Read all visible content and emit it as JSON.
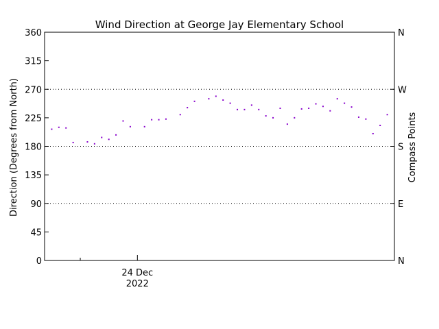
{
  "chart_data": {
    "type": "scatter",
    "title": "Wind Direction at George Jay Elementary School",
    "ylabel": "Direction (Degrees from North)",
    "ylabel_right": "Compass Points",
    "ylim": [
      0,
      360
    ],
    "yticks": [
      0,
      45,
      90,
      135,
      180,
      225,
      270,
      315,
      360
    ],
    "right_ticks": [
      {
        "value": 0,
        "label": "N"
      },
      {
        "value": 90,
        "label": "E"
      },
      {
        "value": 180,
        "label": "S"
      },
      {
        "value": 270,
        "label": "W"
      },
      {
        "value": 360,
        "label": "N"
      }
    ],
    "gridlines": [
      90,
      180,
      270
    ],
    "grid_style": "dotted",
    "xlim": [
      "2022-12-23 17:30",
      "2022-12-24 18:00"
    ],
    "x_tick_minor": [
      "2022-12-23 20:00"
    ],
    "x_tick_major": {
      "value": "2022-12-24 00:00",
      "label_line1": "24 Dec",
      "label_line2": "2022"
    },
    "marker_color": "#8800cc",
    "series": [
      {
        "x": [
          "2022-12-23 18:00",
          "2022-12-23 18:30",
          "2022-12-23 19:00",
          "2022-12-23 19:30",
          "2022-12-23 20:30",
          "2022-12-23 21:00",
          "2022-12-23 21:30",
          "2022-12-23 22:00",
          "2022-12-23 22:30",
          "2022-12-23 23:00",
          "2022-12-23 23:30",
          "2022-12-24 00:30",
          "2022-12-24 01:00",
          "2022-12-24 01:30",
          "2022-12-24 02:00",
          "2022-12-24 03:00",
          "2022-12-24 03:30",
          "2022-12-24 04:00",
          "2022-12-24 05:00",
          "2022-12-24 05:30",
          "2022-12-24 06:00",
          "2022-12-24 06:30",
          "2022-12-24 07:00",
          "2022-12-24 07:30",
          "2022-12-24 08:00",
          "2022-12-24 08:30",
          "2022-12-24 09:00",
          "2022-12-24 09:30",
          "2022-12-24 10:00",
          "2022-12-24 10:30",
          "2022-12-24 11:00",
          "2022-12-24 11:30",
          "2022-12-24 12:00",
          "2022-12-24 12:30",
          "2022-12-24 13:00",
          "2022-12-24 13:30",
          "2022-12-24 14:00",
          "2022-12-24 14:30",
          "2022-12-24 15:00",
          "2022-12-24 15:30",
          "2022-12-24 16:00",
          "2022-12-24 16:30",
          "2022-12-24 17:00",
          "2022-12-24 17:30"
        ],
        "values": [
          207,
          210,
          209,
          186,
          187,
          184,
          194,
          191,
          198,
          220,
          211,
          211,
          222,
          222,
          223,
          230,
          241,
          251,
          255,
          259,
          253,
          248,
          238,
          238,
          245,
          238,
          228,
          225,
          240,
          215,
          225,
          239,
          240,
          247,
          243,
          236,
          255,
          248,
          242,
          226,
          223,
          200,
          213,
          230
        ]
      }
    ]
  }
}
